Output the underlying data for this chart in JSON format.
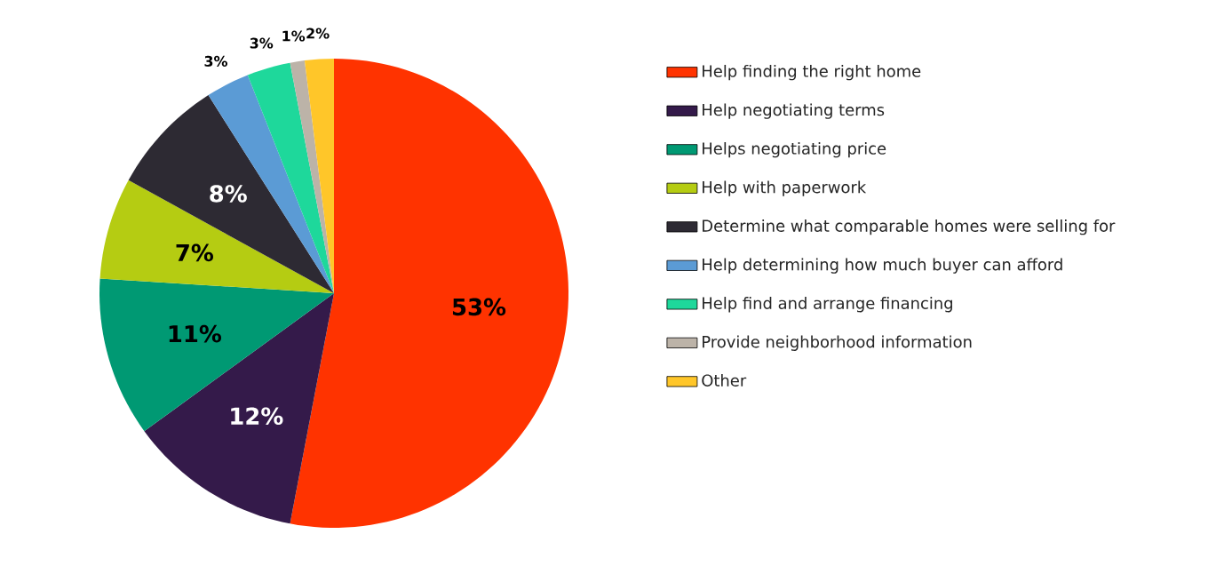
{
  "chart_data": {
    "type": "pie",
    "categories": [
      "Help finding the right home",
      "Help negotiating terms",
      "Helps negotiating price",
      "Help with paperwork",
      "Determine what comparable homes were selling for",
      "Help determining how much buyer can afford",
      "Help find and arrange financing",
      "Provide neighborhood information",
      "Other"
    ],
    "values": [
      53,
      12,
      11,
      7,
      8,
      3,
      3,
      1,
      2
    ],
    "value_labels": [
      "53%",
      "12%",
      "11%",
      "7%",
      "8%",
      "3%",
      "3%",
      "1%",
      "2%"
    ],
    "colors": [
      "#ff3300",
      "#341a4a",
      "#009973",
      "#b5cc12",
      "#2d2a33",
      "#5b9bd5",
      "#1ed89b",
      "#bcb3a8",
      "#ffc629"
    ],
    "legend": "right"
  }
}
